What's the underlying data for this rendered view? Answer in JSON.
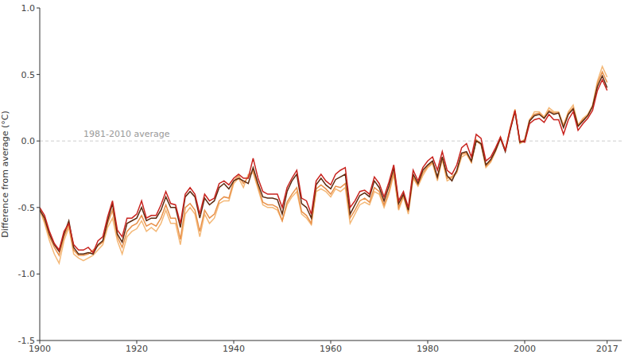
{
  "chart_data": {
    "type": "line",
    "y_label": "Difference from average (°C)",
    "x": [
      1900,
      1901,
      1902,
      1903,
      1904,
      1905,
      1906,
      1907,
      1908,
      1909,
      1910,
      1911,
      1912,
      1913,
      1914,
      1915,
      1916,
      1917,
      1918,
      1919,
      1920,
      1921,
      1922,
      1923,
      1924,
      1925,
      1926,
      1927,
      1928,
      1929,
      1930,
      1931,
      1932,
      1933,
      1934,
      1935,
      1936,
      1937,
      1938,
      1939,
      1940,
      1941,
      1942,
      1943,
      1944,
      1945,
      1946,
      1947,
      1948,
      1949,
      1950,
      1951,
      1952,
      1953,
      1954,
      1955,
      1956,
      1957,
      1958,
      1959,
      1960,
      1961,
      1962,
      1963,
      1964,
      1965,
      1966,
      1967,
      1968,
      1969,
      1970,
      1971,
      1972,
      1973,
      1974,
      1975,
      1976,
      1977,
      1978,
      1979,
      1980,
      1981,
      1982,
      1983,
      1984,
      1985,
      1986,
      1987,
      1988,
      1989,
      1990,
      1991,
      1992,
      1993,
      1994,
      1995,
      1996,
      1997,
      1998,
      1999,
      2000,
      2001,
      2002,
      2003,
      2004,
      2005,
      2006,
      2007,
      2008,
      2009,
      2010,
      2011,
      2012,
      2013,
      2014,
      2015,
      2016,
      2017
    ],
    "series": [
      {
        "color": "#f4b877",
        "values": [
          -0.52,
          -0.62,
          -0.75,
          -0.85,
          -0.92,
          -0.75,
          -0.65,
          -0.85,
          -0.88,
          -0.9,
          -0.88,
          -0.86,
          -0.82,
          -0.78,
          -0.65,
          -0.58,
          -0.75,
          -0.85,
          -0.72,
          -0.68,
          -0.66,
          -0.6,
          -0.68,
          -0.65,
          -0.68,
          -0.62,
          -0.52,
          -0.62,
          -0.62,
          -0.78,
          -0.55,
          -0.5,
          -0.55,
          -0.72,
          -0.55,
          -0.62,
          -0.58,
          -0.47,
          -0.45,
          -0.45,
          -0.32,
          -0.28,
          -0.35,
          -0.25,
          -0.24,
          -0.36,
          -0.48,
          -0.5,
          -0.5,
          -0.52,
          -0.6,
          -0.48,
          -0.42,
          -0.38,
          -0.55,
          -0.58,
          -0.63,
          -0.38,
          -0.36,
          -0.38,
          -0.42,
          -0.36,
          -0.38,
          -0.35,
          -0.62,
          -0.55,
          -0.48,
          -0.46,
          -0.48,
          -0.38,
          -0.4,
          -0.5,
          -0.4,
          -0.25,
          -0.52,
          -0.42,
          -0.55,
          -0.28,
          -0.34,
          -0.26,
          -0.2,
          -0.17,
          -0.3,
          -0.14,
          -0.3,
          -0.28,
          -0.24,
          -0.12,
          -0.1,
          -0.16,
          0.0,
          -0.03,
          -0.2,
          -0.16,
          -0.08,
          0.02,
          -0.07,
          0.1,
          0.24,
          -0.02,
          0.0,
          0.15,
          0.22,
          0.22,
          0.18,
          0.25,
          0.22,
          0.22,
          0.12,
          0.22,
          0.27,
          0.12,
          0.17,
          0.2,
          0.27,
          0.45,
          0.56,
          0.48
        ]
      },
      {
        "color": "#e8914a",
        "values": [
          -0.51,
          -0.6,
          -0.72,
          -0.8,
          -0.86,
          -0.72,
          -0.63,
          -0.82,
          -0.86,
          -0.86,
          -0.85,
          -0.82,
          -0.79,
          -0.76,
          -0.62,
          -0.52,
          -0.72,
          -0.8,
          -0.68,
          -0.64,
          -0.62,
          -0.56,
          -0.64,
          -0.62,
          -0.64,
          -0.58,
          -0.48,
          -0.58,
          -0.58,
          -0.74,
          -0.5,
          -0.47,
          -0.52,
          -0.68,
          -0.52,
          -0.58,
          -0.55,
          -0.45,
          -0.42,
          -0.43,
          -0.3,
          -0.26,
          -0.32,
          -0.27,
          -0.22,
          -0.34,
          -0.46,
          -0.48,
          -0.48,
          -0.5,
          -0.6,
          -0.46,
          -0.4,
          -0.35,
          -0.53,
          -0.56,
          -0.62,
          -0.36,
          -0.33,
          -0.36,
          -0.4,
          -0.34,
          -0.35,
          -0.32,
          -0.58,
          -0.52,
          -0.45,
          -0.43,
          -0.46,
          -0.35,
          -0.38,
          -0.48,
          -0.38,
          -0.23,
          -0.5,
          -0.41,
          -0.53,
          -0.27,
          -0.33,
          -0.24,
          -0.19,
          -0.16,
          -0.28,
          -0.13,
          -0.28,
          -0.27,
          -0.23,
          -0.1,
          -0.09,
          -0.16,
          0.01,
          -0.02,
          -0.19,
          -0.15,
          -0.07,
          0.03,
          -0.07,
          0.09,
          0.23,
          -0.01,
          0.01,
          0.16,
          0.2,
          0.21,
          0.17,
          0.23,
          0.21,
          0.21,
          0.11,
          0.21,
          0.25,
          0.12,
          0.16,
          0.19,
          0.26,
          0.43,
          0.52,
          0.44
        ]
      },
      {
        "color": "#5c2a10",
        "values": [
          -0.52,
          -0.58,
          -0.7,
          -0.78,
          -0.83,
          -0.7,
          -0.6,
          -0.8,
          -0.85,
          -0.85,
          -0.84,
          -0.85,
          -0.78,
          -0.75,
          -0.6,
          -0.47,
          -0.7,
          -0.76,
          -0.62,
          -0.6,
          -0.58,
          -0.5,
          -0.6,
          -0.58,
          -0.58,
          -0.52,
          -0.42,
          -0.5,
          -0.5,
          -0.65,
          -0.42,
          -0.38,
          -0.42,
          -0.58,
          -0.43,
          -0.48,
          -0.45,
          -0.35,
          -0.32,
          -0.36,
          -0.3,
          -0.28,
          -0.3,
          -0.32,
          -0.2,
          -0.32,
          -0.42,
          -0.43,
          -0.43,
          -0.44,
          -0.55,
          -0.38,
          -0.3,
          -0.25,
          -0.47,
          -0.5,
          -0.58,
          -0.33,
          -0.28,
          -0.33,
          -0.36,
          -0.29,
          -0.27,
          -0.25,
          -0.55,
          -0.48,
          -0.41,
          -0.39,
          -0.42,
          -0.3,
          -0.35,
          -0.45,
          -0.34,
          -0.2,
          -0.47,
          -0.4,
          -0.52,
          -0.25,
          -0.32,
          -0.22,
          -0.18,
          -0.15,
          -0.27,
          -0.12,
          -0.26,
          -0.3,
          -0.22,
          -0.09,
          -0.08,
          -0.15,
          0.0,
          -0.02,
          -0.18,
          -0.14,
          -0.07,
          0.02,
          -0.08,
          0.08,
          0.22,
          -0.01,
          0.0,
          0.15,
          0.19,
          0.2,
          0.17,
          0.22,
          0.2,
          0.21,
          0.1,
          0.2,
          0.24,
          0.11,
          0.15,
          0.19,
          0.26,
          0.41,
          0.49,
          0.4
        ]
      },
      {
        "color": "#c8231e",
        "values": [
          -0.5,
          -0.56,
          -0.68,
          -0.77,
          -0.82,
          -0.68,
          -0.62,
          -0.78,
          -0.82,
          -0.82,
          -0.8,
          -0.84,
          -0.75,
          -0.72,
          -0.57,
          -0.45,
          -0.67,
          -0.72,
          -0.58,
          -0.58,
          -0.55,
          -0.45,
          -0.58,
          -0.56,
          -0.56,
          -0.48,
          -0.38,
          -0.47,
          -0.48,
          -0.62,
          -0.4,
          -0.35,
          -0.4,
          -0.55,
          -0.4,
          -0.45,
          -0.43,
          -0.32,
          -0.3,
          -0.33,
          -0.28,
          -0.25,
          -0.28,
          -0.28,
          -0.13,
          -0.28,
          -0.38,
          -0.4,
          -0.4,
          -0.4,
          -0.5,
          -0.35,
          -0.28,
          -0.22,
          -0.43,
          -0.45,
          -0.55,
          -0.3,
          -0.25,
          -0.3,
          -0.33,
          -0.25,
          -0.22,
          -0.2,
          -0.5,
          -0.45,
          -0.38,
          -0.37,
          -0.4,
          -0.27,
          -0.32,
          -0.42,
          -0.31,
          -0.18,
          -0.45,
          -0.38,
          -0.5,
          -0.22,
          -0.3,
          -0.2,
          -0.15,
          -0.12,
          -0.22,
          -0.08,
          -0.22,
          -0.25,
          -0.18,
          -0.05,
          -0.02,
          -0.12,
          0.05,
          0.02,
          -0.15,
          -0.12,
          -0.05,
          0.03,
          -0.07,
          0.09,
          0.23,
          0.0,
          -0.01,
          0.13,
          0.16,
          0.17,
          0.14,
          0.2,
          0.16,
          0.16,
          0.05,
          0.16,
          0.22,
          0.08,
          0.13,
          0.17,
          0.23,
          0.38,
          0.46,
          0.38
        ]
      }
    ],
    "xlim": [
      1900,
      2020
    ],
    "xticks": [
      1900,
      1920,
      1940,
      1960,
      1980,
      2000,
      2017
    ],
    "ylim": [
      -1.5,
      1.0
    ],
    "yticks": [
      -1.5,
      {
        "value": -1.0,
        "label": "-1.0"
      },
      -0.5,
      {
        "value": 0.0,
        "label": "0.0"
      },
      0.5,
      {
        "value": 1.0,
        "label": "1.0"
      }
    ],
    "grid": false,
    "annotations": [
      {
        "text": "1981-2010 average",
        "y": 0,
        "line_style": "dashed"
      }
    ]
  }
}
